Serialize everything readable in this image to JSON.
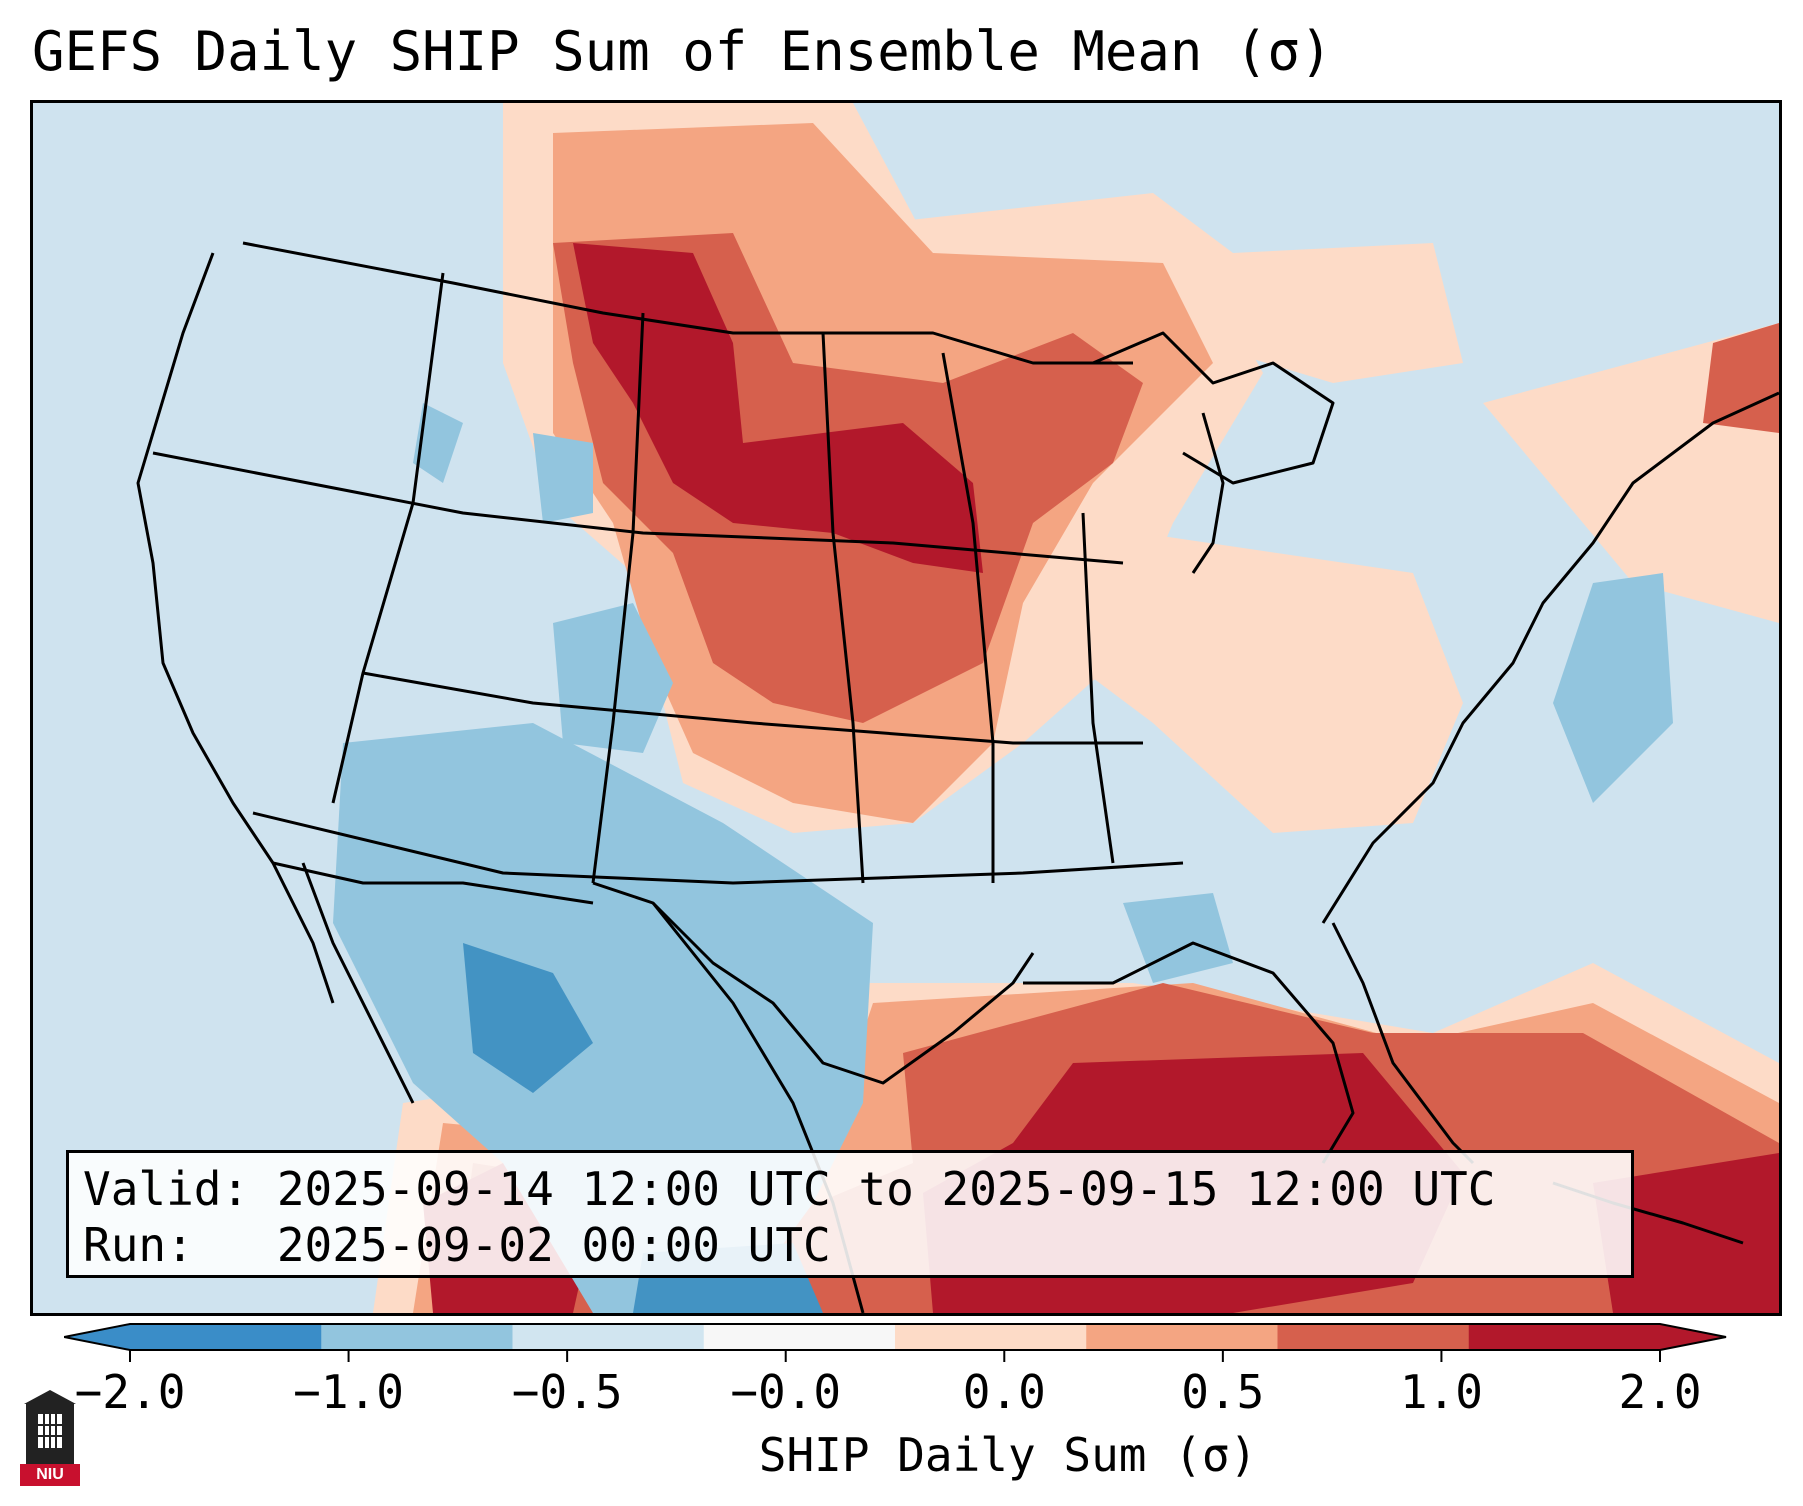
{
  "title": "GEFS Daily SHIP Sum of Ensemble Mean (σ)",
  "valid_box": {
    "valid_line": "Valid: 2025-09-14 12:00 UTC to 2025-09-15 12:00 UTC",
    "run_line": "Run:   2025-09-02 00:00 UTC"
  },
  "colorbar": {
    "label": "SHIP Daily Sum (σ)",
    "ticks": [
      "−2.0",
      "−1.0",
      "−0.5",
      "−0.0",
      "0.0",
      "0.5",
      "1.0",
      "2.0"
    ],
    "colors": [
      "#3a8dc8",
      "#92c5de",
      "#d1e5f0",
      "#f7f7f7",
      "#fddbc7",
      "#f4a582",
      "#d6604d",
      "#b2182b"
    ],
    "extend": "both"
  },
  "logo_text": "NIU",
  "map": {
    "projection": "Lambert Conformal",
    "region": "Contiguous United States",
    "colors": {
      "neutral": "#cfe3ef",
      "light_blue": "#92c5de",
      "blue": "#4393c3",
      "light_red": "#fddbc7",
      "salmon": "#f4a582",
      "red": "#d6604d",
      "dark_red": "#b2182b"
    }
  }
}
